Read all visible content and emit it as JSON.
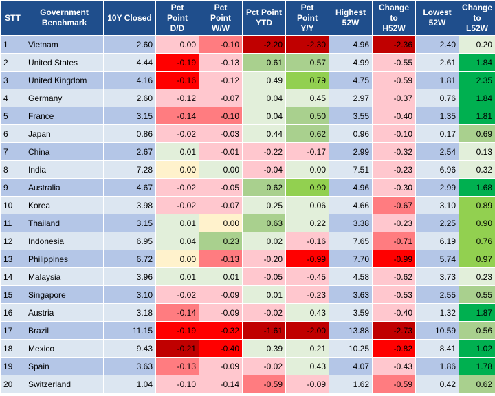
{
  "table": {
    "headers": [
      "STT",
      "Government\nBenchmark",
      "10Y Closed",
      "Pct\nPoint\nD/D",
      "Pct\nPoint\nW/W",
      "Pct Point\nYTD",
      "Pct\nPoint\nY/Y",
      "Highest\n52W",
      "Change\nto\nH52W",
      "Lowest\n52W",
      "Change\nto\nL52W"
    ],
    "rows": [
      {
        "stt": "1",
        "country": "Vietnam",
        "closed": "2.60",
        "dd": "0.00",
        "ww": "-0.10",
        "ytd": "-2.20",
        "yy": "-2.30",
        "high": "4.96",
        "chigh": "-2.36",
        "low": "2.40",
        "clow": "0.20",
        "colors": {
          "dd": "#ffc7ce",
          "ww": "#ff7c80",
          "ytd": "#c00000",
          "yy": "#c00000",
          "chigh": "#c00000",
          "clow": "#e2efda"
        }
      },
      {
        "stt": "2",
        "country": "United States",
        "closed": "4.44",
        "dd": "-0.19",
        "ww": "-0.13",
        "ytd": "0.61",
        "yy": "0.57",
        "high": "4.99",
        "chigh": "-0.55",
        "low": "2.61",
        "clow": "1.84",
        "colors": {
          "dd": "#ff0000",
          "ww": "#ffc7ce",
          "ytd": "#a9d08e",
          "yy": "#a9d08e",
          "chigh": "#ffc7ce",
          "clow": "#00b050"
        }
      },
      {
        "stt": "3",
        "country": "United Kingdom",
        "closed": "4.16",
        "dd": "-0.16",
        "ww": "-0.12",
        "ytd": "0.49",
        "yy": "0.79",
        "high": "4.75",
        "chigh": "-0.59",
        "low": "1.81",
        "clow": "2.35",
        "colors": {
          "dd": "#ff0000",
          "ww": "#ffc7ce",
          "ytd": "#e2efda",
          "yy": "#92d050",
          "chigh": "#ffc7ce",
          "clow": "#00b050"
        }
      },
      {
        "stt": "4",
        "country": "Germany",
        "closed": "2.60",
        "dd": "-0.12",
        "ww": "-0.07",
        "ytd": "0.04",
        "yy": "0.45",
        "high": "2.97",
        "chigh": "-0.37",
        "low": "0.76",
        "clow": "1.84",
        "colors": {
          "dd": "#ffc7ce",
          "ww": "#ffc7ce",
          "ytd": "#e2efda",
          "yy": "#e2efda",
          "chigh": "#ffc7ce",
          "clow": "#00b050"
        }
      },
      {
        "stt": "5",
        "country": "France",
        "closed": "3.15",
        "dd": "-0.14",
        "ww": "-0.10",
        "ytd": "0.04",
        "yy": "0.50",
        "high": "3.55",
        "chigh": "-0.40",
        "low": "1.35",
        "clow": "1.81",
        "colors": {
          "dd": "#ff7c80",
          "ww": "#ff7c80",
          "ytd": "#e2efda",
          "yy": "#a9d08e",
          "chigh": "#ffc7ce",
          "clow": "#00b050"
        }
      },
      {
        "stt": "6",
        "country": "Japan",
        "closed": "0.86",
        "dd": "-0.02",
        "ww": "-0.03",
        "ytd": "0.44",
        "yy": "0.62",
        "high": "0.96",
        "chigh": "-0.10",
        "low": "0.17",
        "clow": "0.69",
        "colors": {
          "dd": "#ffc7ce",
          "ww": "#ffc7ce",
          "ytd": "#e2efda",
          "yy": "#a9d08e",
          "chigh": "#ffc7ce",
          "clow": "#a9d08e"
        }
      },
      {
        "stt": "7",
        "country": "China",
        "closed": "2.67",
        "dd": "0.01",
        "ww": "-0.01",
        "ytd": "-0.22",
        "yy": "-0.17",
        "high": "2.99",
        "chigh": "-0.32",
        "low": "2.54",
        "clow": "0.13",
        "colors": {
          "dd": "#e2efda",
          "ww": "#ffc7ce",
          "ytd": "#ffc7ce",
          "yy": "#ffc7ce",
          "chigh": "#ffc7ce",
          "clow": "#e2efda"
        }
      },
      {
        "stt": "8",
        "country": "India",
        "closed": "7.28",
        "dd": "0.00",
        "ww": "0.00",
        "ytd": "-0.04",
        "yy": "0.00",
        "high": "7.51",
        "chigh": "-0.23",
        "low": "6.96",
        "clow": "0.32",
        "colors": {
          "dd": "#fff2cc",
          "ww": "#e2efda",
          "ytd": "#ffc7ce",
          "yy": "#e2efda",
          "chigh": "#ffc7ce",
          "clow": "#e2efda"
        }
      },
      {
        "stt": "9",
        "country": "Australia",
        "closed": "4.67",
        "dd": "-0.02",
        "ww": "-0.05",
        "ytd": "0.62",
        "yy": "0.90",
        "high": "4.96",
        "chigh": "-0.30",
        "low": "2.99",
        "clow": "1.68",
        "colors": {
          "dd": "#ffc7ce",
          "ww": "#ffc7ce",
          "ytd": "#a9d08e",
          "yy": "#92d050",
          "chigh": "#ffc7ce",
          "clow": "#00b050"
        }
      },
      {
        "stt": "10",
        "country": "Korea",
        "closed": "3.98",
        "dd": "-0.02",
        "ww": "-0.07",
        "ytd": "0.25",
        "yy": "0.06",
        "high": "4.66",
        "chigh": "-0.67",
        "low": "3.10",
        "clow": "0.89",
        "colors": {
          "dd": "#ffc7ce",
          "ww": "#ffc7ce",
          "ytd": "#e2efda",
          "yy": "#e2efda",
          "chigh": "#ff7c80",
          "clow": "#92d050"
        }
      },
      {
        "stt": "11",
        "country": "Thailand",
        "closed": "3.15",
        "dd": "0.01",
        "ww": "0.00",
        "ytd": "0.63",
        "yy": "0.22",
        "high": "3.38",
        "chigh": "-0.23",
        "low": "2.25",
        "clow": "0.90",
        "colors": {
          "dd": "#e2efda",
          "ww": "#fff2cc",
          "ytd": "#a9d08e",
          "yy": "#e2efda",
          "chigh": "#ffc7ce",
          "clow": "#92d050"
        }
      },
      {
        "stt": "12",
        "country": "Indonesia",
        "closed": "6.95",
        "dd": "0.04",
        "ww": "0.23",
        "ytd": "0.02",
        "yy": "-0.16",
        "high": "7.65",
        "chigh": "-0.71",
        "low": "6.19",
        "clow": "0.76",
        "colors": {
          "dd": "#e2efda",
          "ww": "#a9d08e",
          "ytd": "#e2efda",
          "yy": "#ffc7ce",
          "chigh": "#ff7c80",
          "clow": "#92d050"
        }
      },
      {
        "stt": "13",
        "country": "Philippines",
        "closed": "6.72",
        "dd": "0.00",
        "ww": "-0.13",
        "ytd": "-0.20",
        "yy": "-0.99",
        "high": "7.70",
        "chigh": "-0.99",
        "low": "5.74",
        "clow": "0.97",
        "colors": {
          "dd": "#fff2cc",
          "ww": "#ff7c80",
          "ytd": "#ffc7ce",
          "yy": "#ff0000",
          "chigh": "#ff0000",
          "clow": "#92d050"
        }
      },
      {
        "stt": "14",
        "country": "Malaysia",
        "closed": "3.96",
        "dd": "0.01",
        "ww": "0.01",
        "ytd": "-0.05",
        "yy": "-0.45",
        "high": "4.58",
        "chigh": "-0.62",
        "low": "3.73",
        "clow": "0.23",
        "colors": {
          "dd": "#e2efda",
          "ww": "#e2efda",
          "ytd": "#ffc7ce",
          "yy": "#ffc7ce",
          "chigh": "#ffc7ce",
          "clow": "#e2efda"
        }
      },
      {
        "stt": "15",
        "country": "Singapore",
        "closed": "3.10",
        "dd": "-0.02",
        "ww": "-0.09",
        "ytd": "0.01",
        "yy": "-0.23",
        "high": "3.63",
        "chigh": "-0.53",
        "low": "2.55",
        "clow": "0.55",
        "colors": {
          "dd": "#ffc7ce",
          "ww": "#ffc7ce",
          "ytd": "#e2efda",
          "yy": "#ffc7ce",
          "chigh": "#ffc7ce",
          "clow": "#a9d08e"
        }
      },
      {
        "stt": "16",
        "country": "Austria",
        "closed": "3.18",
        "dd": "-0.14",
        "ww": "-0.09",
        "ytd": "-0.02",
        "yy": "0.43",
        "high": "3.59",
        "chigh": "-0.40",
        "low": "1.32",
        "clow": "1.87",
        "colors": {
          "dd": "#ff7c80",
          "ww": "#ffc7ce",
          "ytd": "#ffc7ce",
          "yy": "#e2efda",
          "chigh": "#ffc7ce",
          "clow": "#00b050"
        }
      },
      {
        "stt": "17",
        "country": "Brazil",
        "closed": "11.15",
        "dd": "-0.19",
        "ww": "-0.32",
        "ytd": "-1.61",
        "yy": "-2.00",
        "high": "13.88",
        "chigh": "-2.73",
        "low": "10.59",
        "clow": "0.56",
        "colors": {
          "dd": "#ff0000",
          "ww": "#ff0000",
          "ytd": "#c00000",
          "yy": "#c00000",
          "chigh": "#c00000",
          "clow": "#a9d08e"
        }
      },
      {
        "stt": "18",
        "country": "Mexico",
        "closed": "9.43",
        "dd": "-0.21",
        "ww": "-0.40",
        "ytd": "0.39",
        "yy": "0.21",
        "high": "10.25",
        "chigh": "-0.82",
        "low": "8.41",
        "clow": "1.02",
        "colors": {
          "dd": "#c00000",
          "ww": "#ff0000",
          "ytd": "#e2efda",
          "yy": "#e2efda",
          "chigh": "#ff0000",
          "clow": "#00b050"
        }
      },
      {
        "stt": "19",
        "country": "Spain",
        "closed": "3.63",
        "dd": "-0.13",
        "ww": "-0.09",
        "ytd": "-0.02",
        "yy": "0.43",
        "high": "4.07",
        "chigh": "-0.43",
        "low": "1.86",
        "clow": "1.78",
        "colors": {
          "dd": "#ff7c80",
          "ww": "#ffc7ce",
          "ytd": "#ffc7ce",
          "yy": "#e2efda",
          "chigh": "#ffc7ce",
          "clow": "#00b050"
        }
      },
      {
        "stt": "20",
        "country": "Switzerland",
        "closed": "1.04",
        "dd": "-0.10",
        "ww": "-0.14",
        "ytd": "-0.59",
        "yy": "-0.09",
        "high": "1.62",
        "chigh": "-0.59",
        "low": "0.42",
        "clow": "0.62",
        "colors": {
          "dd": "#ffc7ce",
          "ww": "#ffc7ce",
          "ytd": "#ff7c80",
          "yy": "#ffc7ce",
          "chigh": "#ff7c80",
          "clow": "#a9d08e"
        }
      }
    ]
  }
}
